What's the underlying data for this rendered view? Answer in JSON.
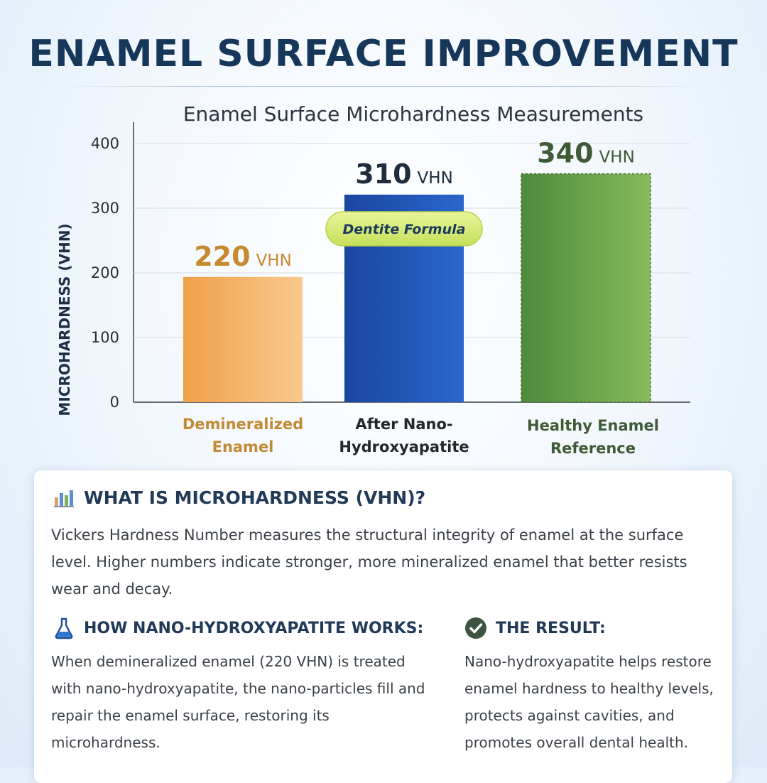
{
  "header": {
    "title": "ENAMEL SURFACE IMPROVEMENT"
  },
  "chart_data": {
    "type": "bar",
    "title": "Enamel Surface Microhardness Measurements",
    "ylabel": "MICROHARDNESS (VHN)",
    "xlabel": "",
    "ylim": [
      0,
      400
    ],
    "yticks": [
      0,
      100,
      200,
      300,
      400
    ],
    "grid": true,
    "categories": [
      "Demineralized Enamel",
      "After Nano-Hydroxyapatite",
      "Healthy Enamel Reference"
    ],
    "category_lines": [
      [
        "Demineralized",
        "Enamel"
      ],
      [
        "After Nano-",
        "Hydroxyapatite"
      ],
      [
        "Healthy Enamel",
        "Reference"
      ]
    ],
    "values": [
      220,
      310,
      340
    ],
    "value_unit": "VHN",
    "colors": [
      "#f3a550",
      "#1f4fae",
      "#5f9a48"
    ],
    "label_colors": [
      "#c58a2e",
      "#1f2d3d",
      "#3f5b35"
    ],
    "annotation": {
      "text": "Dentite Formula",
      "category_index": 1
    }
  },
  "info": {
    "what": {
      "heading": "WHAT IS MICROHARDNESS (VHN)?",
      "text": "Vickers Hardness Number measures the structural integrity of enamel at the surface level. Higher numbers indicate stronger, more mineralized enamel that better resists wear and decay.",
      "icon": "bar-chart-icon"
    },
    "how": {
      "heading": "HOW NANO-HYDROXYAPATITE WORKS:",
      "text": "When demineralized enamel (220 VHN) is treated with nano-hydroxyapatite, the nano-particles fill and repair the enamel surface, restoring its microhardness.",
      "icon": "flask-icon"
    },
    "result": {
      "heading": "THE RESULT:",
      "text": "Nano-hydroxyapatite helps restore enamel hardness to healthy levels, protects against cavities, and promotes overall dental health.",
      "icon": "check-circle-icon"
    }
  }
}
